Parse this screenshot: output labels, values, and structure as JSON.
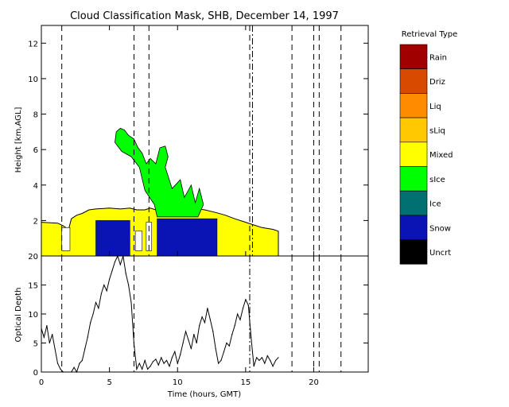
{
  "chart_data": [
    {
      "type": "area",
      "title": "Cloud Classification Mask, SHB, December 14, 1997",
      "xlabel": "",
      "ylabel": "Height [km,AGL]",
      "xlim": [
        0,
        24
      ],
      "ylim": [
        0,
        13
      ],
      "y_ticks": [
        0,
        2,
        4,
        6,
        8,
        10,
        12
      ],
      "grid": false,
      "legend_title": "Retrieval Type",
      "legend_position": "right",
      "legend": [
        {
          "label": "Rain",
          "color": "#a00000"
        },
        {
          "label": "Driz",
          "color": "#d84a00"
        },
        {
          "label": "Liq",
          "color": "#ff8c00"
        },
        {
          "label": "sLiq",
          "color": "#ffc800"
        },
        {
          "label": "Mixed",
          "color": "#ffff00"
        },
        {
          "label": "sIce",
          "color": "#00ff00"
        },
        {
          "label": "Ice",
          "color": "#007070"
        },
        {
          "label": "Snow",
          "color": "#0a14b4"
        },
        {
          "label": "Uncrt",
          "color": "#000000"
        }
      ],
      "series": [
        {
          "class": "Mixed",
          "cloud_top": [
            [
              0,
              1.9
            ],
            [
              1.2,
              1.85
            ],
            [
              1.6,
              1.7
            ],
            [
              2.0,
              1.5
            ],
            [
              2.2,
              2.1
            ],
            [
              2.6,
              2.3
            ],
            [
              3.0,
              2.4
            ],
            [
              3.5,
              2.6
            ],
            [
              4.0,
              2.65
            ],
            [
              5.0,
              2.7
            ],
            [
              5.8,
              2.65
            ],
            [
              6.5,
              2.7
            ],
            [
              7.0,
              2.6
            ],
            [
              7.6,
              2.6
            ],
            [
              8.0,
              2.7
            ],
            [
              8.4,
              2.6
            ],
            [
              9.0,
              2.7
            ],
            [
              10,
              2.7
            ],
            [
              11,
              2.7
            ],
            [
              12,
              2.6
            ],
            [
              12.8,
              2.45
            ],
            [
              13.5,
              2.3
            ],
            [
              14.2,
              2.1
            ],
            [
              15.0,
              1.9
            ],
            [
              15.6,
              1.75
            ],
            [
              16.2,
              1.6
            ],
            [
              17.0,
              1.5
            ],
            [
              17.4,
              1.4
            ]
          ],
          "gaps": [
            [
              1.5,
              2.1,
              1.6
            ],
            [
              6.9,
              7.4,
              1.4
            ],
            [
              7.7,
              8.1,
              1.9
            ]
          ]
        },
        {
          "class": "sIce",
          "regions": [
            [
              [
                5.5,
                7.0
              ],
              [
                5.8,
                7.2
              ],
              [
                6.1,
                7.1
              ],
              [
                6.4,
                6.8
              ],
              [
                6.8,
                6.6
              ],
              [
                7.1,
                6.1
              ],
              [
                7.4,
                5.8
              ],
              [
                7.7,
                5.2
              ],
              [
                8.0,
                5.5
              ],
              [
                8.4,
                5.2
              ],
              [
                8.7,
                6.1
              ],
              [
                9.1,
                6.2
              ],
              [
                9.3,
                5.6
              ],
              [
                9.1,
                5.0
              ],
              [
                9.6,
                3.8
              ],
              [
                10.2,
                4.3
              ],
              [
                10.5,
                3.3
              ],
              [
                11.0,
                4.0
              ],
              [
                11.3,
                3.0
              ],
              [
                11.6,
                3.8
              ],
              [
                11.9,
                2.9
              ],
              [
                11.5,
                2.2
              ],
              [
                10.0,
                2.2
              ],
              [
                8.5,
                2.2
              ],
              [
                8.3,
                2.9
              ],
              [
                7.6,
                3.7
              ],
              [
                7.2,
                5.0
              ],
              [
                6.6,
                5.6
              ],
              [
                5.9,
                5.9
              ],
              [
                5.4,
                6.4
              ]
            ]
          ]
        },
        {
          "class": "Snow",
          "blocks": [
            [
              4.0,
              6.5,
              0,
              2.0
            ],
            [
              8.5,
              12.9,
              0,
              2.1
            ]
          ]
        }
      ],
      "annotations": {
        "vertical_dashed_lines_x": [
          1.5,
          6.8,
          7.9,
          15.3,
          18.4,
          20.0,
          20.4,
          22.0
        ],
        "vertical_dashdot_lines_x": [
          15.5
        ]
      }
    },
    {
      "type": "line",
      "title": "",
      "xlabel": "Time (hours, GMT)",
      "ylabel": "Optical Depth",
      "xlim": [
        0,
        24
      ],
      "ylim": [
        0,
        20
      ],
      "x_ticks": [
        0,
        5,
        10,
        15,
        20
      ],
      "y_ticks": [
        0,
        5,
        10,
        15,
        20
      ],
      "grid": false,
      "series": [
        {
          "values": [
            [
              0,
              7.5
            ],
            [
              0.2,
              6
            ],
            [
              0.4,
              8
            ],
            [
              0.6,
              5
            ],
            [
              0.8,
              6.5
            ],
            [
              1.0,
              4
            ],
            [
              1.2,
              1.5
            ],
            [
              1.4,
              0.5
            ],
            [
              1.6,
              0
            ],
            [
              1.8,
              0
            ],
            [
              2.0,
              0
            ],
            [
              2.2,
              0
            ],
            [
              2.4,
              0.8
            ],
            [
              2.6,
              0
            ],
            [
              2.8,
              1.5
            ],
            [
              3.0,
              2
            ],
            [
              3.2,
              4
            ],
            [
              3.4,
              6
            ],
            [
              3.6,
              8.5
            ],
            [
              3.8,
              10
            ],
            [
              4.0,
              12
            ],
            [
              4.2,
              11
            ],
            [
              4.4,
              13.5
            ],
            [
              4.6,
              15
            ],
            [
              4.8,
              14
            ],
            [
              5.0,
              16
            ],
            [
              5.2,
              17.5
            ],
            [
              5.4,
              19
            ],
            [
              5.6,
              20
            ],
            [
              5.8,
              18.5
            ],
            [
              6.0,
              20
            ],
            [
              6.2,
              17
            ],
            [
              6.4,
              15
            ],
            [
              6.6,
              12
            ],
            [
              6.8,
              5
            ],
            [
              7.0,
              0.5
            ],
            [
              7.2,
              1.5
            ],
            [
              7.4,
              0.5
            ],
            [
              7.6,
              2
            ],
            [
              7.8,
              0.5
            ],
            [
              8.0,
              1
            ],
            [
              8.2,
              1.8
            ],
            [
              8.4,
              2.2
            ],
            [
              8.6,
              1.2
            ],
            [
              8.8,
              2.5
            ],
            [
              9.0,
              1.5
            ],
            [
              9.2,
              2
            ],
            [
              9.4,
              1
            ],
            [
              9.6,
              2.5
            ],
            [
              9.8,
              3.5
            ],
            [
              10.0,
              1.5
            ],
            [
              10.2,
              3
            ],
            [
              10.4,
              5
            ],
            [
              10.6,
              7
            ],
            [
              10.8,
              5.5
            ],
            [
              11.0,
              4
            ],
            [
              11.2,
              6.5
            ],
            [
              11.4,
              5
            ],
            [
              11.6,
              8
            ],
            [
              11.8,
              9.5
            ],
            [
              12.0,
              8.5
            ],
            [
              12.2,
              11
            ],
            [
              12.4,
              9
            ],
            [
              12.6,
              7
            ],
            [
              12.8,
              4
            ],
            [
              13.0,
              1.5
            ],
            [
              13.2,
              2
            ],
            [
              13.4,
              3.5
            ],
            [
              13.6,
              5
            ],
            [
              13.8,
              4.5
            ],
            [
              14.0,
              6.5
            ],
            [
              14.2,
              8
            ],
            [
              14.4,
              10
            ],
            [
              14.6,
              9
            ],
            [
              14.8,
              11
            ],
            [
              15.0,
              12.5
            ],
            [
              15.2,
              11.5
            ],
            [
              15.4,
              6
            ],
            [
              15.6,
              1
            ],
            [
              15.8,
              2.5
            ],
            [
              16.0,
              2
            ],
            [
              16.2,
              2.5
            ],
            [
              16.4,
              1.5
            ],
            [
              16.6,
              2.8
            ],
            [
              16.8,
              2
            ],
            [
              17.0,
              1
            ],
            [
              17.2,
              2
            ],
            [
              17.4,
              2.5
            ]
          ]
        }
      ],
      "annotations": {
        "vertical_dashed_lines_x": [
          1.5,
          6.8,
          18.4,
          20.0,
          20.4,
          22.0
        ],
        "vertical_dashdot_lines_x": [
          15.3
        ]
      }
    }
  ]
}
